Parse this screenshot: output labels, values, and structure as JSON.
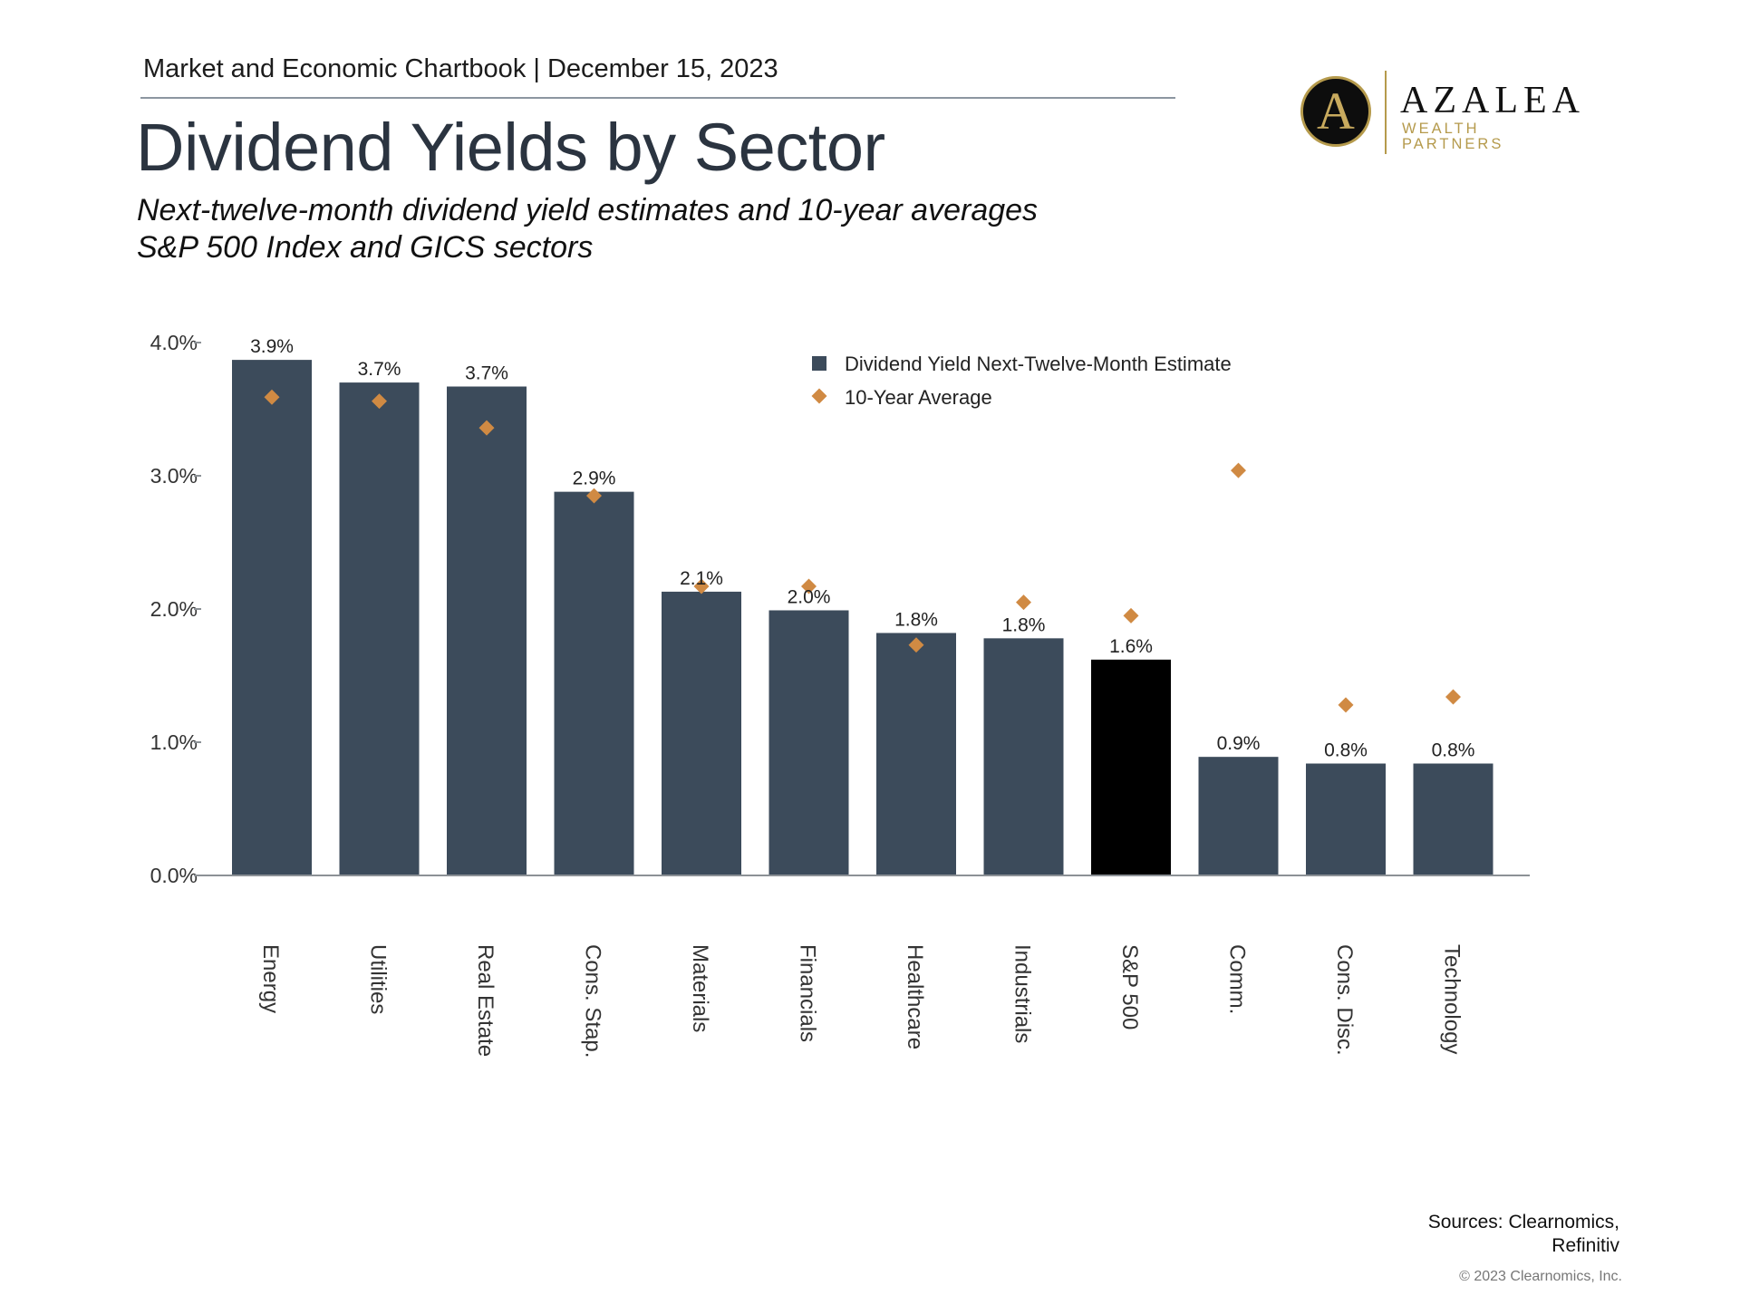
{
  "header": {
    "label": "Market and Economic Chartbook | December 15, 2023",
    "title": "Dividend Yields by Sector",
    "subtitle_line1": "Next-twelve-month dividend yield estimates and 10-year averages",
    "subtitle_line2": "S&P 500 Index and GICS sectors"
  },
  "logo": {
    "letter": "A",
    "name": "AZALEA",
    "sub": "WEALTH PARTNERS"
  },
  "footer": {
    "sources_line1": "Sources: Clearnomics,",
    "sources_line2": "Refinitiv",
    "copyright": "© 2023 Clearnomics, Inc."
  },
  "colors": {
    "bar": "#3c4b5b",
    "highlight_bar": "#000000",
    "marker": "#d08a43",
    "axis": "#8c9196",
    "text": "#333333"
  },
  "chart_data": {
    "type": "bar",
    "categories": [
      "Energy",
      "Utilities",
      "Real Estate",
      "Cons. Stap.",
      "Materials",
      "Financials",
      "Healthcare",
      "Industrials",
      "S&P 500",
      "Comm.",
      "Cons. Disc.",
      "Technology"
    ],
    "series": [
      {
        "name": "Dividend Yield Next-Twelve-Month Estimate",
        "type": "bar",
        "values": [
          3.87,
          3.7,
          3.67,
          2.88,
          2.13,
          1.99,
          1.82,
          1.78,
          1.62,
          0.89,
          0.84,
          0.84
        ],
        "labels": [
          "3.9%",
          "3.7%",
          "3.7%",
          "2.9%",
          "2.1%",
          "2.0%",
          "1.8%",
          "1.8%",
          "1.6%",
          "0.9%",
          "0.8%",
          "0.8%"
        ]
      },
      {
        "name": "10-Year Average",
        "type": "scatter",
        "values": [
          3.59,
          3.56,
          3.36,
          2.85,
          2.17,
          2.17,
          1.73,
          2.05,
          1.95,
          3.04,
          1.28,
          1.34
        ]
      }
    ],
    "highlight_category": "S&P 500",
    "yticks": [
      "0.0%",
      "1.0%",
      "2.0%",
      "3.0%",
      "4.0%"
    ],
    "ylim": [
      0,
      4
    ],
    "grid": false,
    "legend": "top-center"
  }
}
